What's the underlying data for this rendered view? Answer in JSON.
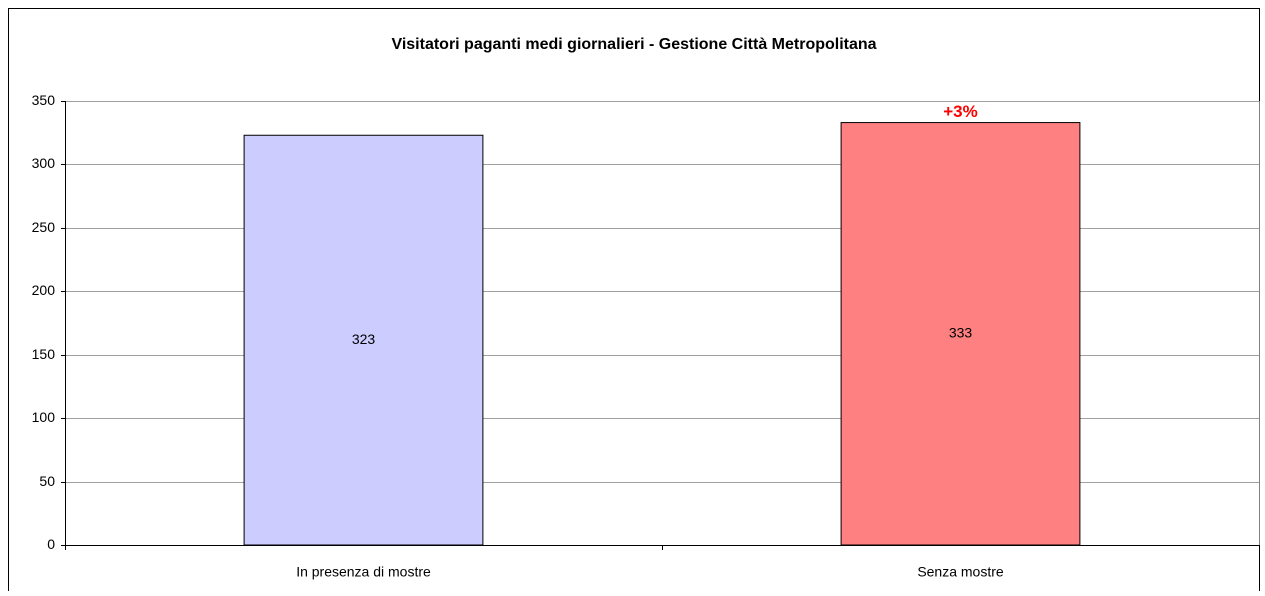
{
  "chart_data": {
    "type": "bar",
    "title": "Visitatori paganti medi giornalieri - Gestione Città Metropolitana",
    "categories": [
      "In presenza di mostre",
      "Senza mostre"
    ],
    "values": [
      323,
      333
    ],
    "colors": [
      "#ccccff",
      "#ff8080"
    ],
    "annotation": "+3%",
    "ylim": [
      0,
      350
    ],
    "yticks": [
      0,
      50,
      100,
      150,
      200,
      250,
      300,
      350
    ],
    "grid": true
  }
}
